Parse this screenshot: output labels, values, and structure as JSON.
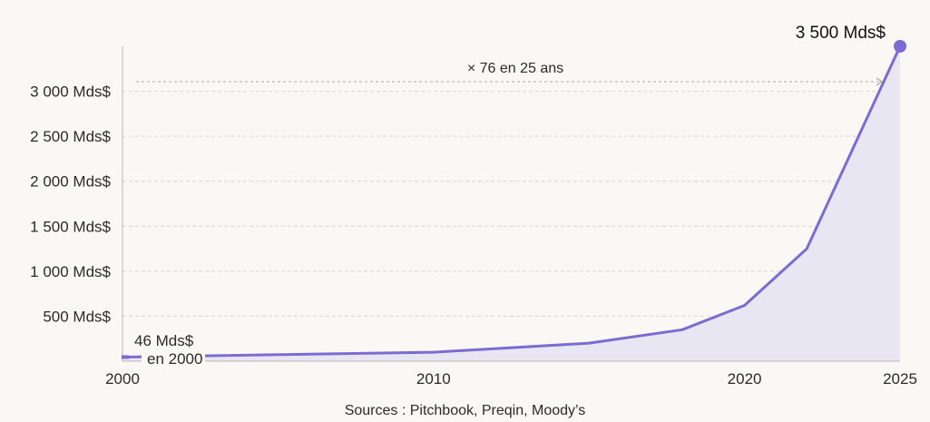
{
  "chart_data": {
    "type": "area",
    "x": [
      2000,
      2010,
      2015,
      2018,
      2020,
      2022,
      2025
    ],
    "series": [
      {
        "values": [
          46,
          100,
          200,
          350,
          620,
          1250,
          3500
        ]
      }
    ],
    "xticks": [
      {
        "value": 2000,
        "label": "2000"
      },
      {
        "value": 2010,
        "label": "2010"
      },
      {
        "value": 2020,
        "label": "2020"
      },
      {
        "value": 2025,
        "label": "2025"
      }
    ],
    "yticks": [
      {
        "value": 500,
        "label": "500 Mds$"
      },
      {
        "value": 1000,
        "label": "1 000 Mds$"
      },
      {
        "value": 1500,
        "label": "1 500 Mds$"
      },
      {
        "value": 2000,
        "label": "2 000 Mds$"
      },
      {
        "value": 2500,
        "label": "2 500 Mds$"
      },
      {
        "value": 3000,
        "label": "3 000 Mds$"
      }
    ],
    "xlim": [
      2000,
      2025
    ],
    "ylim": [
      0,
      3500
    ],
    "grid": true,
    "annotations": {
      "start_value": "46 Mds$",
      "start_year": "en 2000",
      "end_value": "3 500 Mds$",
      "growth": "× 76 en 25 ans"
    },
    "colors": {
      "line": "#7b6cd4",
      "fill": "#e9e6f3",
      "grid": "#d8d6d0"
    }
  },
  "footer": {
    "source": "Sources : Pitchbook, Preqin, Moody’s"
  }
}
